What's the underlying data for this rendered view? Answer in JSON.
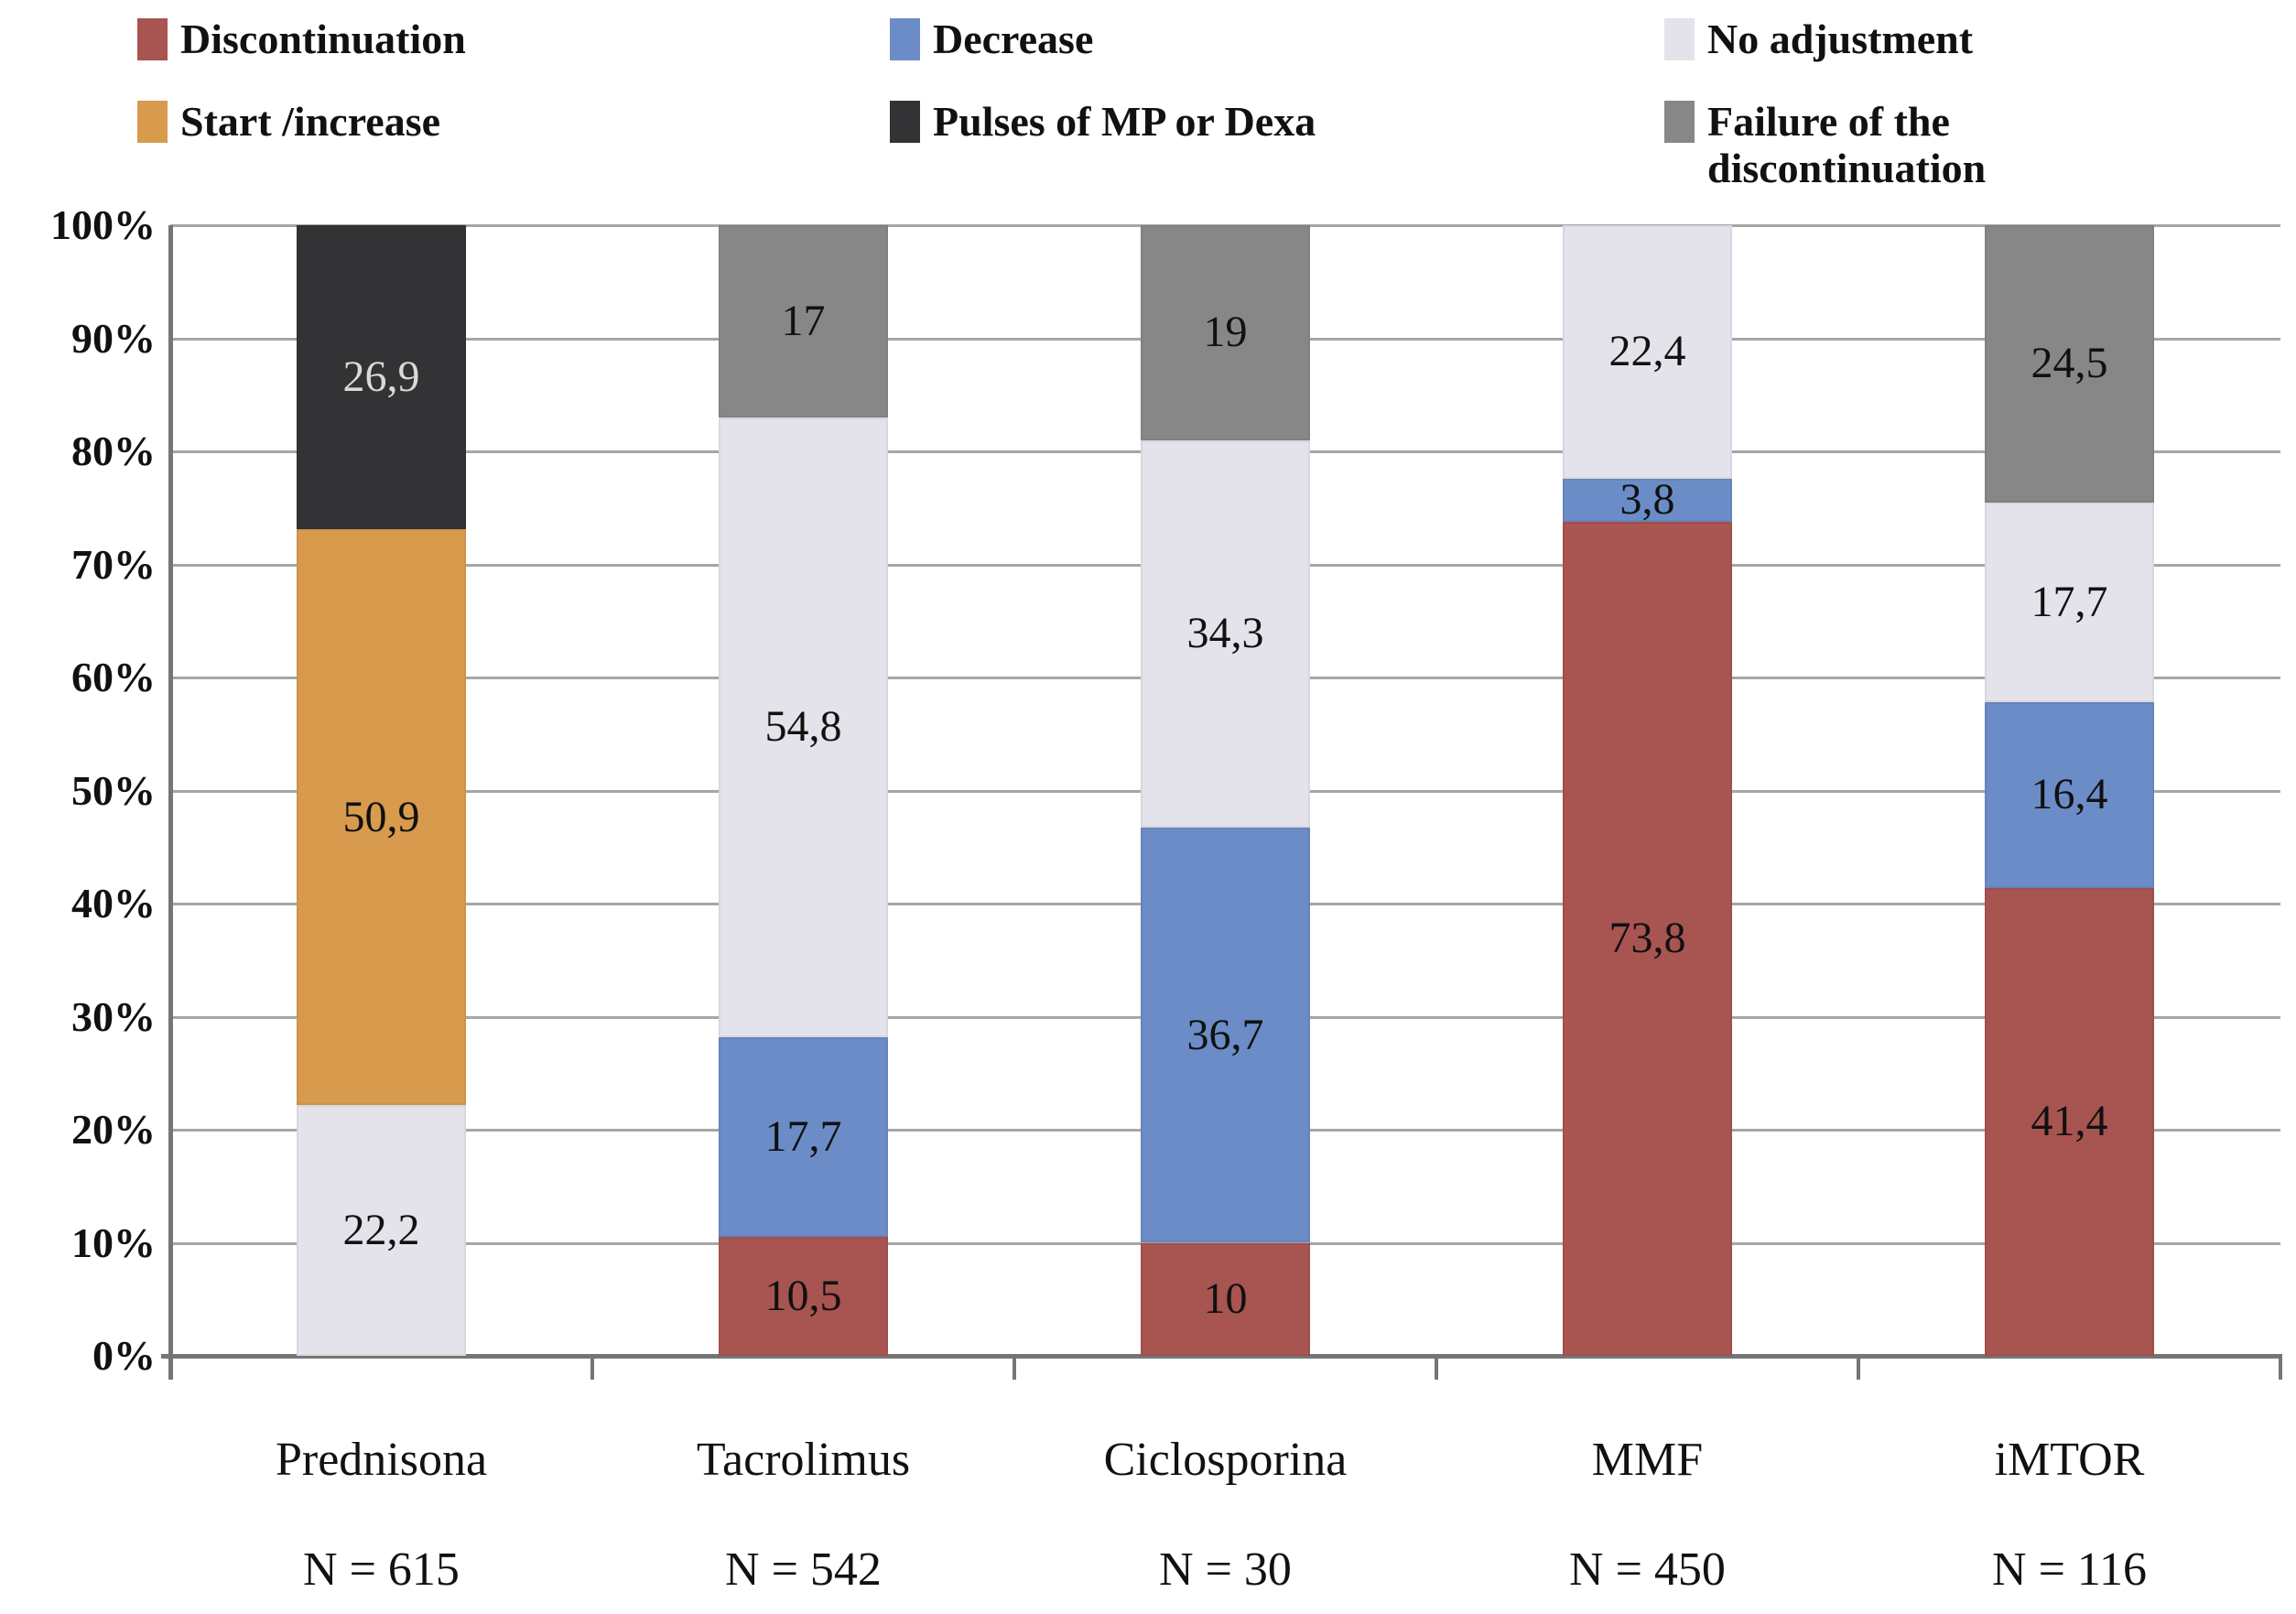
{
  "figure": {
    "background": "#ffffff"
  },
  "chart_data": {
    "type": "bar",
    "stacked": true,
    "percent_stacked": true,
    "title": "",
    "xlabel": "",
    "ylabel": "",
    "ylim": [
      0,
      100
    ],
    "y_tick_labels": [
      "0%",
      "10%",
      "20%",
      "30%",
      "40%",
      "50%",
      "60%",
      "70%",
      "80%",
      "90%",
      "100%"
    ],
    "grid": true,
    "legend_position": "top",
    "categories": [
      "Prednisona",
      "Tacrolimus",
      "Ciclosporina",
      "MMF",
      "iMTOR"
    ],
    "category_counts": [
      "N = 615",
      "N = 542",
      "N = 30",
      "N = 450",
      "N = 116"
    ],
    "series": [
      {
        "name": "Discontinuation",
        "color": "#a85451",
        "text_color": "#111111",
        "values": [
          null,
          10.5,
          10,
          73.8,
          41.4
        ],
        "data_labels": [
          "",
          "10,5",
          "10",
          "73,8",
          "41,4"
        ]
      },
      {
        "name": "Decrease",
        "color": "#6b8cc7",
        "text_color": "#111111",
        "values": [
          null,
          17.7,
          36.7,
          3.8,
          16.4
        ],
        "data_labels": [
          "",
          "17,7",
          "36,7",
          "3,8",
          "16,4"
        ]
      },
      {
        "name": "No adjustment",
        "color": "#e4e2ea",
        "text_color": "#111111",
        "values": [
          22.2,
          54.8,
          34.3,
          22.4,
          17.7
        ],
        "data_labels": [
          "22,2",
          "54,8",
          "34,3",
          "22,4",
          "17,7"
        ]
      },
      {
        "name": "Start /increase",
        "color": "#d89a4d",
        "text_color": "#111111",
        "values": [
          50.9,
          null,
          null,
          null,
          null
        ],
        "data_labels": [
          "50,9",
          "",
          "",
          "",
          ""
        ]
      },
      {
        "name": "Pulses of MP or Dexa",
        "color": "#333336",
        "text_color": "#d9d9d9",
        "values": [
          26.9,
          null,
          null,
          null,
          null
        ],
        "data_labels": [
          "26,9",
          "",
          "",
          "",
          ""
        ]
      },
      {
        "name": "Failure of the discontinuation",
        "color": "#878787",
        "text_color": "#111111",
        "values": [
          null,
          17,
          19,
          null,
          24.5
        ],
        "data_labels": [
          "",
          "17",
          "19",
          "",
          "24,5"
        ]
      }
    ]
  },
  "colors": {
    "grid": "#a6a6a6",
    "axis": "#757575",
    "background": "#ffffff"
  }
}
